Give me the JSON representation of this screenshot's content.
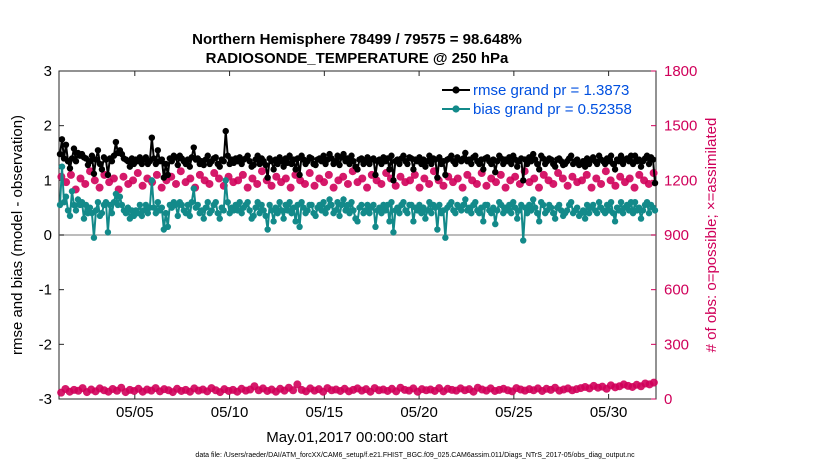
{
  "chart_data": {
    "type": "line",
    "title_line1": "Northern Hemisphere 78499 / 79575 = 98.648%",
    "title_line2": "RADIOSONDE_TEMPERATURE @ 250 hPa",
    "xlabel": "May.01,2017 00:00:00 start",
    "ylabel_left": "rmse and bias (model - observation)",
    "ylabel_right": "# of obs: o=possible; ×=assimilated",
    "footnote": "data file: /Users/raeder/DAI/ATM_forcXX/CAM6_setup/f.e21.FHIST_BGC.f09_025.CAM6assim.011/Diags_NTrS_2017-05/obs_diag_output.nc",
    "xlim": [
      0,
      31.5
    ],
    "ylim_left": [
      -3,
      3
    ],
    "ylim_right": [
      0,
      1800
    ],
    "x_ticks": [
      4,
      9,
      14,
      19,
      24,
      29
    ],
    "x_tick_labels": [
      "05/05",
      "05/10",
      "05/15",
      "05/20",
      "05/25",
      "05/30"
    ],
    "y_left_ticks": [
      "-3",
      "-2",
      "-1",
      "0",
      "1",
      "2",
      "3"
    ],
    "y_right_ticks": [
      "0",
      "300",
      "600",
      "900",
      "1200",
      "1500",
      "1800"
    ],
    "legend": [
      {
        "label": "rmse grand pr = 1.3873",
        "color": "#000000"
      },
      {
        "label": "bias grand pr = 0.52358",
        "color": "#138a8a"
      }
    ],
    "series": [
      {
        "name": "rmse",
        "color": "#000000",
        "values": [
          1.48,
          1.75,
          1.4,
          1.65,
          1.35,
          1.22,
          1.4,
          1.58,
          1.35,
          1.5,
          1.45,
          1.48,
          1.42,
          1.4,
          1.28,
          1.35,
          1.45,
          1.12,
          1.38,
          1.55,
          1.3,
          1.2,
          1.42,
          1.38,
          1.1,
          1.4,
          1.35,
          1.45,
          1.7,
          1.5,
          1.55,
          1.48,
          1.4,
          1.38,
          1.35,
          1.25,
          1.4,
          1.3,
          1.38,
          1.35,
          1.42,
          1.3,
          1.38,
          1.42,
          1.3,
          1.35,
          1.78,
          1.4,
          1.3,
          1.55,
          1.35,
          1.38,
          1.05,
          1.3,
          1.1,
          1.4,
          1.35,
          1.45,
          1.42,
          1.28,
          1.45,
          1.4,
          1.35,
          1.3,
          1.38,
          1.25,
          1.42,
          1.6,
          1.38,
          1.4,
          1.3,
          1.35,
          1.28,
          1.38,
          1.45,
          1.3,
          1.35,
          1.4,
          1.42,
          1.3,
          1.25,
          1.38,
          1.35,
          1.9,
          1.45,
          1.3,
          1.38,
          1.32,
          1.4,
          1.35,
          1.42,
          1.3,
          1.38,
          1.4,
          1.45,
          1.35,
          1.25,
          1.28,
          1.38,
          1.45,
          1.3,
          1.4,
          1.35,
          1.28,
          1.05,
          1.4,
          1.35,
          1.2,
          1.38,
          1.3,
          1.42,
          1.35,
          1.25,
          1.4,
          1.32,
          1.45,
          1.3,
          1.38,
          1.2,
          1.4,
          1.1,
          1.45,
          1.38,
          1.3,
          1.35,
          1.42,
          1.4,
          1.3,
          1.28,
          1.38,
          1.4,
          1.35,
          1.45,
          1.3,
          1.38,
          1.48,
          1.4,
          1.3,
          1.35,
          1.45,
          1.28,
          1.42,
          1.48,
          1.35,
          1.4,
          1.3,
          1.45,
          1.35,
          1.25,
          1.2,
          1.38,
          1.4,
          1.3,
          1.35,
          1.42,
          1.3,
          1.38,
          1.4,
          1.1,
          1.35,
          1.38,
          1.3,
          1.42,
          1.35,
          1.4,
          1.2,
          1.45,
          1.0,
          1.35,
          1.38,
          1.3,
          1.4,
          1.45,
          1.35,
          1.3,
          1.42,
          1.4,
          1.2,
          1.38,
          1.35,
          1.42,
          1.3,
          1.38,
          1.25,
          1.35,
          1.45,
          1.3,
          1.4,
          1.38,
          1.05,
          1.42,
          1.3,
          1.35,
          1.1,
          1.38,
          1.4,
          1.45,
          1.35,
          1.3,
          1.42,
          1.38,
          1.35,
          1.4,
          1.5,
          1.35,
          1.38,
          1.3,
          1.42,
          1.45,
          1.35,
          1.3,
          1.38,
          1.2,
          1.4,
          1.42,
          1.35,
          1.3,
          1.38,
          1.15,
          1.35,
          1.45,
          1.4,
          1.3,
          1.38,
          1.35,
          1.42,
          1.3,
          1.45,
          1.38,
          1.25,
          1.35,
          1.4,
          1.0,
          1.38,
          1.3,
          1.42,
          1.35,
          1.48,
          1.38,
          1.3,
          1.2,
          1.45,
          1.4,
          1.3,
          1.35,
          1.4,
          1.38,
          1.3,
          1.25,
          1.38,
          1.4,
          1.35,
          1.28,
          1.3,
          1.35,
          1.4,
          1.45,
          1.3,
          1.35,
          1.38,
          1.28,
          1.3,
          1.35,
          1.25,
          1.4,
          1.3,
          1.38,
          1.42,
          1.35,
          1.3,
          1.45,
          1.38,
          1.35,
          1.3,
          1.4,
          1.35,
          1.45,
          1.3,
          1.2,
          1.38,
          1.35,
          1.45,
          1.3,
          1.38,
          1.4,
          1.35,
          1.45,
          1.3,
          1.45,
          1.35,
          1.38,
          1.25,
          1.35,
          1.4,
          1.45,
          1.3,
          1.42,
          1.38,
          0.95
        ]
      },
      {
        "name": "bias",
        "color": "#138a8a",
        "values": [
          0.55,
          1.25,
          0.6,
          0.7,
          0.45,
          0.35,
          0.8,
          0.55,
          0.45,
          0.65,
          0.55,
          0.6,
          0.3,
          0.55,
          0.4,
          0.5,
          0.4,
          -0.05,
          0.45,
          0.6,
          0.35,
          0.4,
          0.55,
          0.6,
          0.05,
          0.55,
          0.4,
          0.6,
          0.75,
          0.55,
          0.7,
          0.55,
          0.45,
          0.4,
          0.5,
          0.3,
          0.45,
          0.35,
          0.45,
          0.4,
          0.55,
          0.35,
          0.45,
          0.55,
          0.4,
          0.5,
          1.0,
          0.5,
          0.4,
          0.6,
          0.45,
          0.5,
          0.1,
          0.4,
          0.15,
          0.55,
          0.5,
          0.6,
          0.55,
          0.35,
          0.6,
          0.55,
          0.45,
          0.4,
          0.55,
          0.35,
          0.6,
          0.85,
          0.5,
          0.55,
          0.4,
          0.45,
          0.3,
          0.5,
          0.6,
          0.4,
          0.45,
          0.55,
          0.6,
          0.4,
          0.3,
          0.5,
          0.45,
          1.0,
          0.6,
          0.4,
          0.5,
          0.45,
          0.55,
          0.45,
          0.6,
          0.4,
          0.5,
          0.55,
          0.6,
          0.45,
          0.3,
          0.35,
          0.5,
          0.6,
          0.4,
          0.55,
          0.45,
          0.35,
          0.1,
          0.55,
          0.45,
          0.25,
          0.5,
          0.4,
          0.6,
          0.45,
          0.3,
          0.55,
          0.45,
          0.6,
          0.4,
          0.5,
          0.25,
          0.55,
          0.15,
          0.6,
          0.5,
          0.4,
          0.45,
          0.55,
          0.55,
          0.4,
          0.35,
          0.5,
          0.55,
          0.45,
          0.6,
          0.4,
          0.5,
          0.65,
          0.55,
          0.4,
          0.45,
          0.6,
          0.35,
          0.55,
          0.65,
          0.45,
          0.55,
          0.4,
          0.6,
          0.45,
          0.3,
          0.25,
          0.5,
          0.55,
          0.4,
          0.45,
          0.55,
          0.4,
          0.5,
          0.55,
          0.15,
          0.45,
          0.5,
          0.4,
          0.55,
          0.45,
          0.55,
          0.25,
          0.6,
          0.05,
          0.45,
          0.5,
          0.4,
          0.55,
          0.6,
          0.45,
          0.4,
          0.55,
          0.55,
          0.25,
          0.5,
          0.45,
          0.55,
          0.4,
          0.5,
          0.3,
          0.45,
          0.6,
          0.4,
          0.55,
          0.5,
          0.1,
          0.55,
          0.4,
          0.45,
          -0.05,
          0.5,
          0.55,
          0.6,
          0.45,
          0.4,
          0.55,
          0.5,
          0.45,
          0.55,
          0.65,
          0.45,
          0.5,
          0.4,
          0.55,
          0.6,
          0.45,
          0.4,
          0.5,
          0.25,
          0.55,
          0.55,
          0.45,
          0.4,
          0.5,
          0.2,
          0.45,
          0.6,
          0.55,
          0.4,
          0.5,
          0.45,
          0.55,
          0.4,
          0.6,
          0.5,
          0.3,
          0.45,
          0.55,
          -0.1,
          0.5,
          0.4,
          0.55,
          0.45,
          0.65,
          0.5,
          0.4,
          0.25,
          0.6,
          0.55,
          0.4,
          0.45,
          0.55,
          0.5,
          0.4,
          0.3,
          0.5,
          0.55,
          0.45,
          0.35,
          0.4,
          0.45,
          0.55,
          0.6,
          0.4,
          0.45,
          0.5,
          0.35,
          0.4,
          0.45,
          0.3,
          0.55,
          0.4,
          0.5,
          0.55,
          0.45,
          0.4,
          0.6,
          0.5,
          0.45,
          0.4,
          0.55,
          0.45,
          0.6,
          0.4,
          0.25,
          0.5,
          0.45,
          0.6,
          0.4,
          0.5,
          0.55,
          0.45,
          0.6,
          0.4,
          0.6,
          0.45,
          0.5,
          0.3,
          0.45,
          0.55,
          0.6,
          0.4,
          0.55,
          0.5,
          0.45
        ]
      },
      {
        "name": "obs_possible_high",
        "axis": "right",
        "color": "#d0005a",
        "values": [
          1220,
          1190,
          1230,
          1150,
          1210,
          1180,
          1250,
          1200,
          1160,
          1230,
          1190,
          1210,
          1150,
          1220,
          1180,
          1200,
          1240,
          1170,
          1210,
          1190,
          1230,
          1160,
          1200,
          1220,
          1180,
          1250,
          1190,
          1210,
          1160,
          1230,
          1200,
          1180,
          1240,
          1210,
          1170,
          1220,
          1190,
          1200,
          1230,
          1160,
          1210,
          1180,
          1250,
          1200,
          1170,
          1220,
          1190,
          1210,
          1160,
          1230,
          1200,
          1180,
          1240,
          1170,
          1210,
          1190,
          1230,
          1160,
          1200,
          1220,
          1180,
          1250,
          1190,
          1210,
          1160,
          1230,
          1200,
          1180,
          1240,
          1210,
          1170,
          1220,
          1190,
          1200,
          1230,
          1160,
          1210,
          1180,
          1250,
          1200,
          1170,
          1220,
          1190,
          1210,
          1160,
          1230,
          1200,
          1180,
          1240,
          1170,
          1210,
          1190,
          1230,
          1160,
          1200,
          1220,
          1180,
          1250,
          1190,
          1210,
          1160,
          1230,
          1200,
          1180,
          1240,
          1210,
          1170,
          1220,
          1190,
          1200,
          1230,
          1160,
          1210,
          1180,
          1250,
          1200,
          1170,
          1220,
          1190,
          1210,
          1160,
          1230,
          1200,
          1180,
          1240
        ]
      },
      {
        "name": "obs_possible_low",
        "axis": "right",
        "color": "#d0005a",
        "values": [
          35,
          55,
          40,
          50,
          45,
          60,
          38,
          52,
          42,
          58,
          48,
          40,
          55,
          45,
          62,
          38,
          50,
          44,
          56,
          40,
          52,
          46,
          60,
          42,
          54,
          48,
          38,
          56,
          44,
          50,
          40,
          58,
          46,
          52,
          42,
          60,
          48,
          38,
          54,
          44,
          50,
          40,
          56,
          46,
          52,
          70,
          48,
          58,
          44,
          52,
          40,
          56,
          46,
          62,
          48,
          80,
          50,
          42,
          58,
          46,
          54,
          40,
          60,
          48,
          52,
          44,
          56,
          42,
          50,
          58,
          46,
          54,
          40,
          60,
          48,
          52,
          44,
          56,
          42,
          62,
          50,
          46,
          58,
          40,
          54,
          48,
          52,
          44,
          60,
          42,
          56,
          50,
          46,
          58,
          48,
          54,
          40,
          62,
          52,
          46,
          58,
          44,
          50,
          56,
          48,
          42,
          60,
          52,
          46,
          54,
          48,
          58,
          44,
          56,
          50,
          62,
          46,
          52,
          58,
          48,
          54,
          60,
          66,
          58,
          72,
          62,
          68,
          56,
          75,
          64,
          70,
          80,
          72,
          66,
          78,
          70,
          85,
          80,
          90
        ]
      }
    ]
  }
}
